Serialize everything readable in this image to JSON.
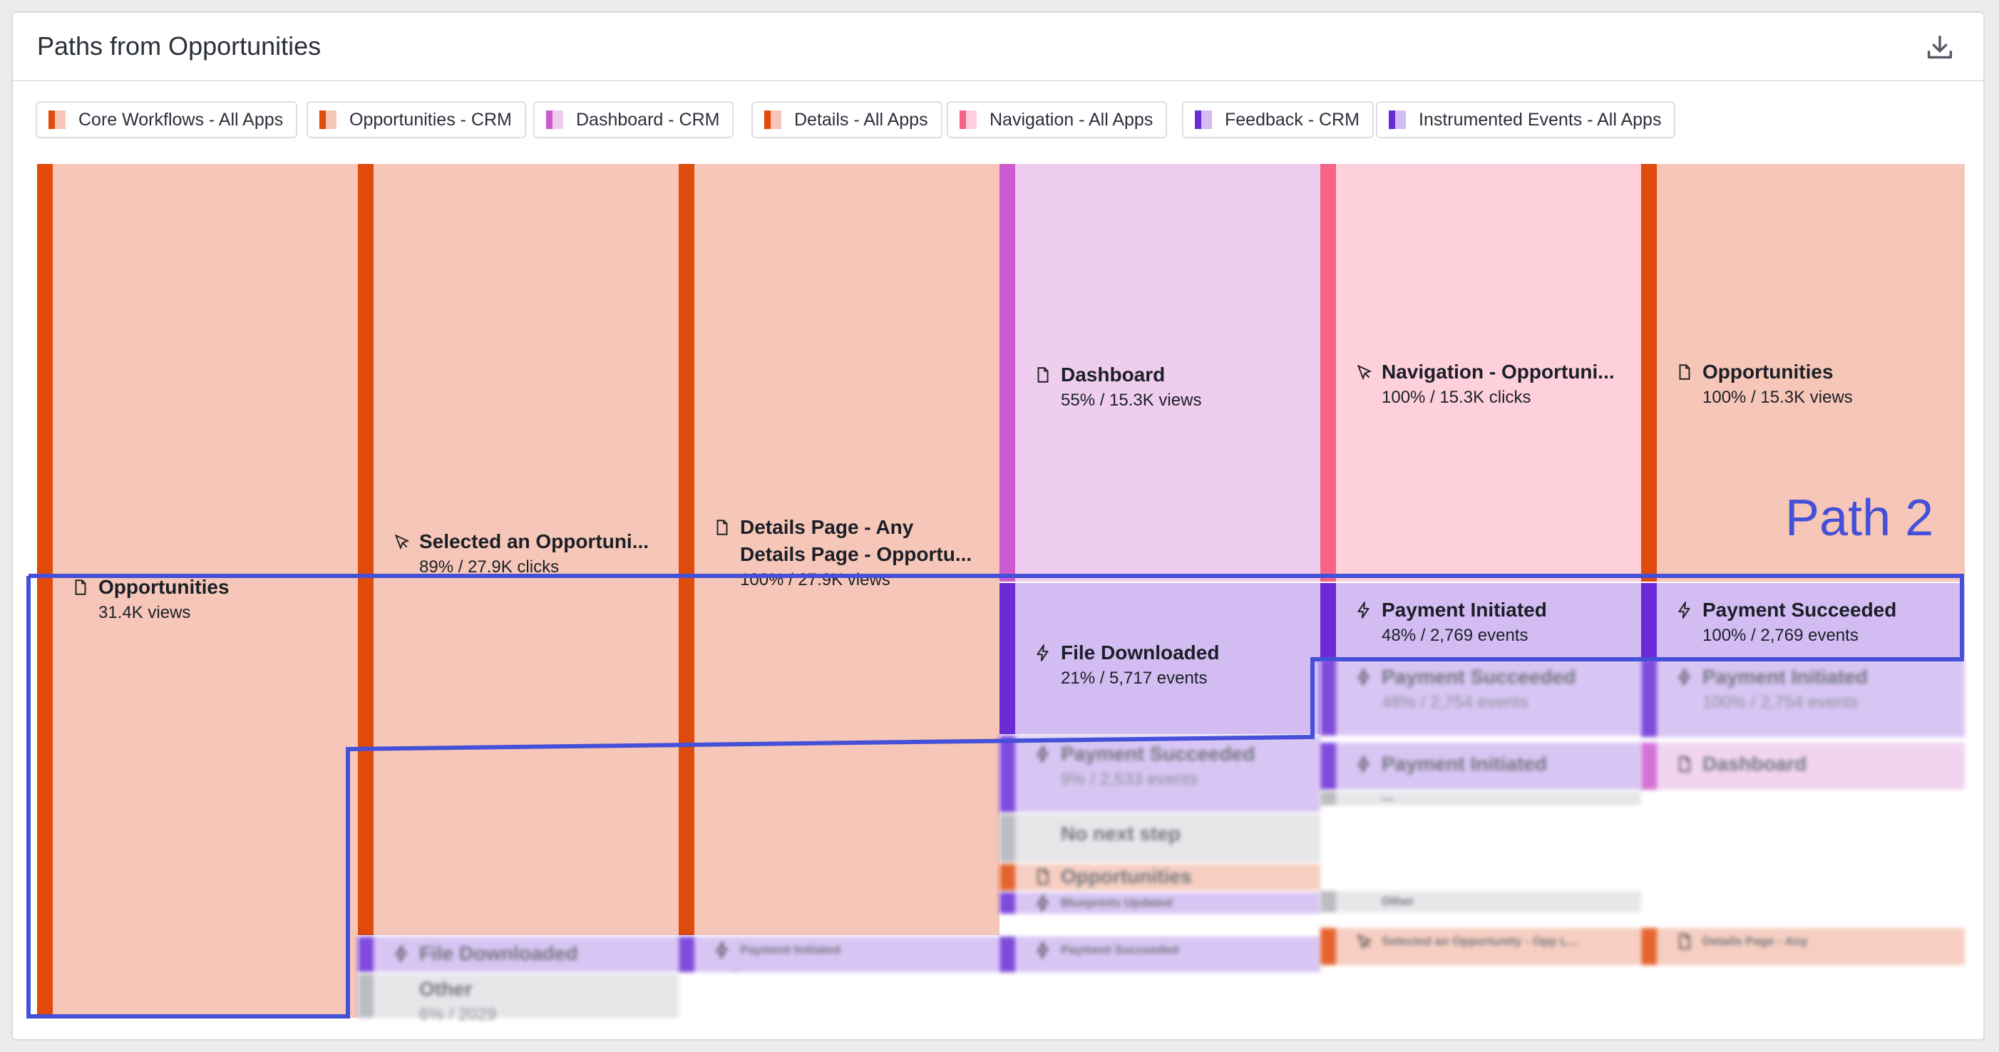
{
  "card": {
    "title": "Paths from Opportunities",
    "download_icon": "download-icon"
  },
  "colors": {
    "orange": "#e04a0b",
    "orange_fill": "#f6c7b8",
    "magenta": "#cc5bd0",
    "magenta_fill": "#efcdee",
    "pink": "#f76388",
    "pink_fill": "#fdd0dc",
    "purple": "#6a2bd6",
    "purple_fill": "#d2bcf2",
    "gray": "#b0b2b8",
    "gray_fill": "#e2e3e6",
    "path_outline": "#4550d8"
  },
  "legend": [
    {
      "label": "Core Workflows - All Apps",
      "c1": "#e04a0b",
      "c2": "#f6c7b8"
    },
    {
      "label": "Opportunities - CRM",
      "c1": "#e04a0b",
      "c2": "#f6c7b8"
    },
    {
      "label": "Dashboard - CRM",
      "c1": "#cc5bd0",
      "c2": "#efcdee"
    },
    {
      "label": "Details - All Apps",
      "c1": "#e04a0b",
      "c2": "#f6c7b8"
    },
    {
      "label": "Navigation - All Apps",
      "c1": "#f76388",
      "c2": "#fdd0dc"
    },
    {
      "label": "Feedback - CRM",
      "c1": "#6a2bd6",
      "c2": "#d2bcf2"
    },
    {
      "label": "Instrumented Events - All Apps",
      "c1": "#6a2bd6",
      "c2": "#d2bcf2"
    }
  ],
  "nodes": {
    "c1_opportunities": {
      "name": "Opportunities",
      "stat": "31.4K views",
      "icon": "page-icon"
    },
    "c2_selected": {
      "name": "Selected an Opportuni...",
      "stat": "89% / 27.9K clicks",
      "icon": "cursor-icon"
    },
    "c2_file": {
      "name": "File Downloaded",
      "icon": "bolt-icon"
    },
    "c2_other": {
      "name": "Other",
      "stat": "6% / 2029"
    },
    "c3_details": {
      "name": "Details Page - Any",
      "name2": "Details Page - Opportu...",
      "stat": "100% / 27.9K views",
      "icon": "page-icon"
    },
    "c3_payment": {
      "name": "Payment Initiated",
      "stat": "—",
      "icon": "bolt-icon"
    },
    "c4_dashboard": {
      "name": "Dashboard",
      "stat": "55% / 15.3K views",
      "icon": "page-icon"
    },
    "c4_file": {
      "name": "File Downloaded",
      "stat": "21% / 5,717 events",
      "icon": "bolt-icon"
    },
    "c4_paysucc": {
      "name": "Payment Succeeded",
      "stat": "9% / 2,533 events",
      "icon": "bolt-icon"
    },
    "c4_nonext": {
      "name": "No next step"
    },
    "c4_opps": {
      "name": "Opportunities",
      "icon": "page-icon"
    },
    "c4_blueprints": {
      "name": "Blueprints Updated",
      "icon": "bolt-icon"
    },
    "c4_paysucc2": {
      "name": "Payment Succeeded",
      "icon": "bolt-icon"
    },
    "c5_nav": {
      "name": "Navigation - Opportuni...",
      "stat": "100% / 15.3K clicks",
      "icon": "cursor-icon"
    },
    "c5_payinit": {
      "name": "Payment Initiated",
      "stat": "48% / 2,769 events",
      "icon": "bolt-icon"
    },
    "c5_paysucc": {
      "name": "Payment Succeeded",
      "stat": "48% / 2,754 events",
      "icon": "bolt-icon"
    },
    "c5_payinit2": {
      "name": "Payment Initiated",
      "icon": "bolt-icon"
    },
    "c5_dash": {
      "name": "—"
    },
    "c5_other": {
      "name": "Other"
    },
    "c5_selected": {
      "name": "Selected an Opportunity - Opp L...",
      "icon": "cursor-icon"
    },
    "c6_opps": {
      "name": "Opportunities",
      "stat": "100% / 15.3K views",
      "icon": "page-icon"
    },
    "c6_paysucc": {
      "name": "Payment Succeeded",
      "stat": "100% / 2,769 events",
      "icon": "bolt-icon"
    },
    "c6_payinit": {
      "name": "Payment Initiated",
      "stat": "100% / 2,754 events",
      "icon": "bolt-icon"
    },
    "c6_dashboard": {
      "name": "Dashboard",
      "icon": "page-icon"
    },
    "c6_details": {
      "name": "Details Page - Any",
      "icon": "page-icon"
    }
  },
  "annotation": {
    "path_label": "Path 2"
  }
}
